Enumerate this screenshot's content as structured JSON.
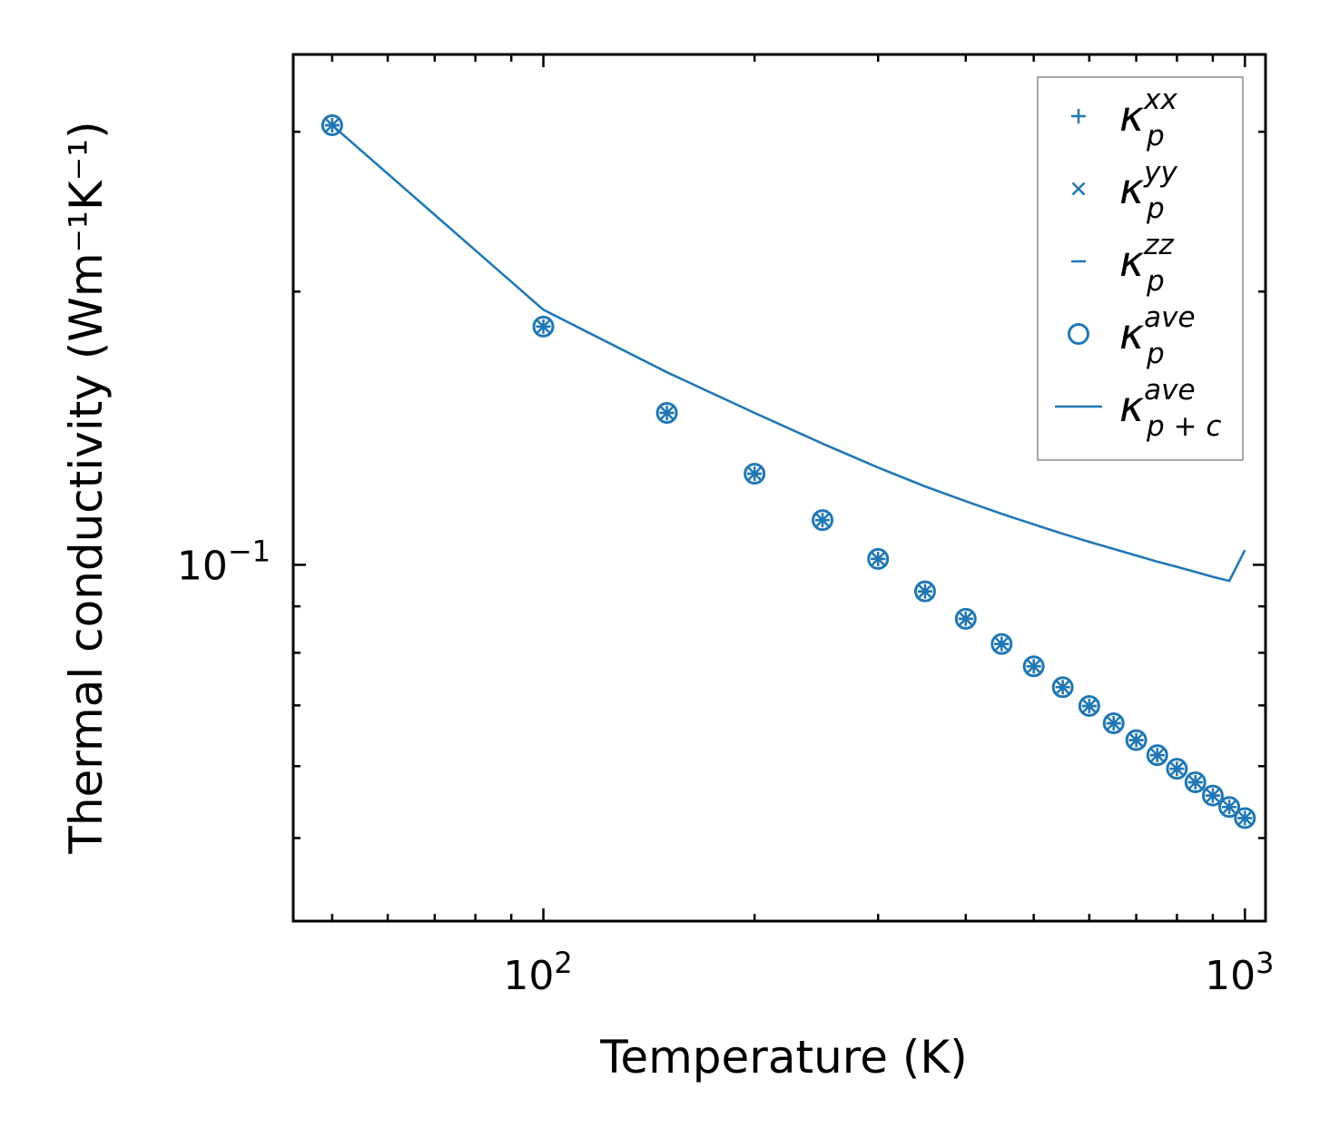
{
  "chart_data": {
    "type": "scatter",
    "title": "",
    "xlabel": "Temperature (K)",
    "ylabel": "Thermal conductivity (Wm⁻¹K⁻¹)",
    "xscale": "log",
    "yscale": "log",
    "xlim": [
      44,
      1070
    ],
    "ylim": [
      0.0405,
      0.365
    ],
    "x_ticks": [
      {
        "value": 100,
        "base": "10",
        "exp": "2"
      },
      {
        "value": 1000,
        "base": "10",
        "exp": "3"
      }
    ],
    "y_ticks": [
      {
        "value": 0.1,
        "base": "10",
        "exp": "−1"
      }
    ],
    "legend_position": "top-right",
    "color": "#1f77b4",
    "x": [
      50,
      100,
      150,
      200,
      250,
      300,
      350,
      400,
      450,
      500,
      550,
      600,
      650,
      700,
      750,
      800,
      850,
      900,
      950,
      1000
    ],
    "series": [
      {
        "name": "kappa_p_xx",
        "kappa": "κ",
        "sub": "p",
        "sup": "xx",
        "marker": "plus",
        "values": [
          0.305,
          0.183,
          0.147,
          0.126,
          0.112,
          0.1015,
          0.0935,
          0.0872,
          0.0818,
          0.0773,
          0.0733,
          0.0699,
          0.0669,
          0.0641,
          0.0617,
          0.0596,
          0.0576,
          0.0557,
          0.0541,
          0.0526
        ]
      },
      {
        "name": "kappa_p_yy",
        "kappa": "κ",
        "sub": "p",
        "sup": "yy",
        "marker": "cross",
        "values": [
          0.305,
          0.183,
          0.147,
          0.126,
          0.112,
          0.1015,
          0.0935,
          0.0872,
          0.0818,
          0.0773,
          0.0733,
          0.0699,
          0.0669,
          0.0641,
          0.0617,
          0.0596,
          0.0576,
          0.0557,
          0.0541,
          0.0526
        ]
      },
      {
        "name": "kappa_p_zz",
        "kappa": "κ",
        "sub": "p",
        "sup": "zz",
        "marker": "hline",
        "values": [
          0.305,
          0.183,
          0.147,
          0.126,
          0.112,
          0.1015,
          0.0935,
          0.0872,
          0.0818,
          0.0773,
          0.0733,
          0.0699,
          0.0669,
          0.0641,
          0.0617,
          0.0596,
          0.0576,
          0.0557,
          0.0541,
          0.0526
        ]
      },
      {
        "name": "kappa_p_ave",
        "kappa": "κ",
        "sub": "p",
        "sup": "ave",
        "marker": "circle",
        "values": [
          0.305,
          0.183,
          0.147,
          0.126,
          0.112,
          0.1015,
          0.0935,
          0.0872,
          0.0818,
          0.0773,
          0.0733,
          0.0699,
          0.0669,
          0.0641,
          0.0617,
          0.0596,
          0.0576,
          0.0557,
          0.0541,
          0.0526
        ]
      },
      {
        "name": "kappa_pc_ave",
        "kappa": "κ",
        "sub": "p + c",
        "sup": "ave",
        "marker": "line",
        "values": [
          0.305,
          0.191,
          0.163,
          0.147,
          0.136,
          0.128,
          0.122,
          0.1175,
          0.1138,
          0.1108,
          0.1082,
          0.106,
          0.1041,
          0.1024,
          0.1008,
          0.0995,
          0.0982,
          0.097,
          0.096,
          0.1038
        ]
      }
    ]
  }
}
